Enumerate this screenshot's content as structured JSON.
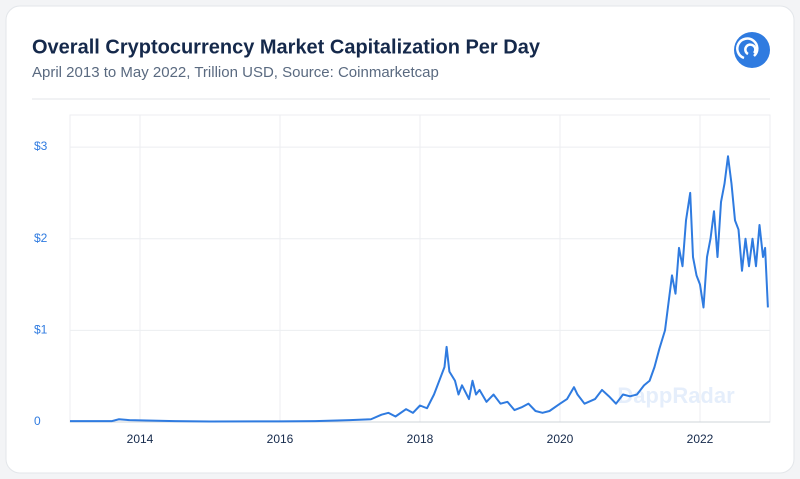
{
  "chart_data": {
    "type": "line",
    "title": "Overall Cryptocurrency Market Capitalization Per Day",
    "subtitle": "April 2013 to May 2022, Trillion USD, Source: Coinmarketcap",
    "watermark": "DappRadar",
    "x": [
      2013.0,
      2013.6,
      2013.7,
      2013.85,
      2014.5,
      2015.0,
      2016.0,
      2016.5,
      2017.0,
      2017.3,
      2017.45,
      2017.55,
      2017.65,
      2017.8,
      2017.9,
      2018.0,
      2018.1,
      2018.2,
      2018.3,
      2018.35,
      2018.38,
      2018.42,
      2018.5,
      2018.55,
      2018.6,
      2018.7,
      2018.75,
      2018.8,
      2018.85,
      2018.95,
      2019.05,
      2019.15,
      2019.25,
      2019.35,
      2019.45,
      2019.55,
      2019.65,
      2019.75,
      2019.85,
      2020.0,
      2020.1,
      2020.2,
      2020.25,
      2020.35,
      2020.5,
      2020.6,
      2020.7,
      2020.8,
      2020.9,
      2021.0,
      2021.1,
      2021.2,
      2021.28,
      2021.35,
      2021.42,
      2021.5,
      2021.55,
      2021.6,
      2021.65,
      2021.7,
      2021.75,
      2021.8,
      2021.86,
      2021.9,
      2021.95,
      2022.0,
      2022.05,
      2022.1,
      2022.15,
      2022.2,
      2022.25,
      2022.3,
      2022.35,
      2022.4,
      2022.45,
      2022.5,
      2022.55,
      2022.6,
      2022.65,
      2022.7,
      2022.75,
      2022.8,
      2022.85,
      2022.9,
      2022.93,
      2022.97
    ],
    "series": [
      {
        "name": "Market Capitalization",
        "color": "#2f7be0",
        "values": [
          0.01,
          0.01,
          0.03,
          0.02,
          0.01,
          0.005,
          0.007,
          0.01,
          0.02,
          0.03,
          0.08,
          0.1,
          0.06,
          0.14,
          0.1,
          0.18,
          0.15,
          0.3,
          0.5,
          0.6,
          0.82,
          0.55,
          0.45,
          0.3,
          0.4,
          0.25,
          0.45,
          0.3,
          0.35,
          0.22,
          0.3,
          0.2,
          0.22,
          0.13,
          0.16,
          0.2,
          0.12,
          0.1,
          0.12,
          0.2,
          0.25,
          0.38,
          0.3,
          0.2,
          0.25,
          0.35,
          0.28,
          0.2,
          0.3,
          0.28,
          0.3,
          0.4,
          0.45,
          0.6,
          0.8,
          1.0,
          1.3,
          1.6,
          1.4,
          1.9,
          1.7,
          2.2,
          2.5,
          1.8,
          1.6,
          1.5,
          1.25,
          1.8,
          2.0,
          2.3,
          1.8,
          2.4,
          2.6,
          2.9,
          2.6,
          2.2,
          2.1,
          1.65,
          2.0,
          1.7,
          2.0,
          1.7,
          2.15,
          1.8,
          1.9,
          1.25
        ]
      }
    ],
    "xlim": [
      2013.0,
      2023.0
    ],
    "xticks": [
      2014,
      2016,
      2018,
      2020,
      2022
    ],
    "ylim": [
      0,
      3.35
    ],
    "yticks": [
      0,
      {
        "value": 1,
        "label": "$1"
      },
      {
        "value": 2,
        "label": "$2"
      },
      {
        "value": 3,
        "label": "$3"
      }
    ],
    "grid": true
  }
}
